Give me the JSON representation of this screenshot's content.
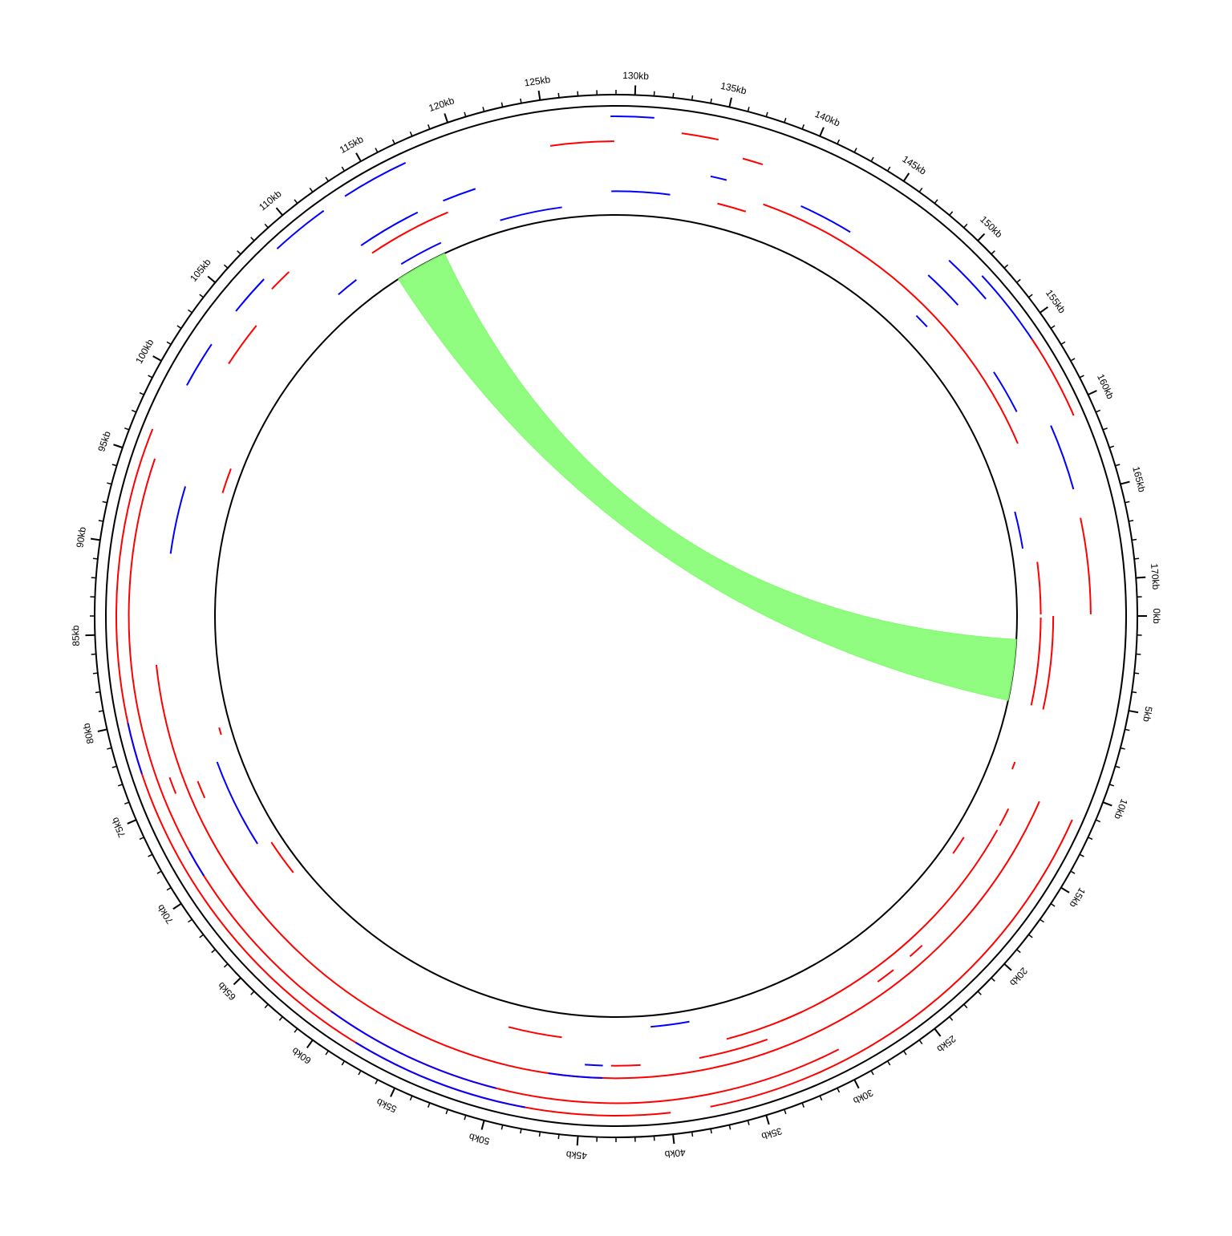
{
  "chart_data": {
    "type": "circos",
    "xlim": [
      0,
      172
    ],
    "xticks": [
      {
        "value": 0,
        "label": "0kb"
      },
      {
        "value": 5,
        "label": "5kb"
      },
      {
        "value": 10,
        "label": "10kb"
      },
      {
        "value": 15,
        "label": "15kb"
      },
      {
        "value": 20,
        "label": "20kb"
      },
      {
        "value": 25,
        "label": "25kb"
      },
      {
        "value": 30,
        "label": "30kb"
      },
      {
        "value": 35,
        "label": "35kb"
      },
      {
        "value": 40,
        "label": "40kb"
      },
      {
        "value": 45,
        "label": "45kb"
      },
      {
        "value": 50,
        "label": "50kb"
      },
      {
        "value": 55,
        "label": "55kb"
      },
      {
        "value": 60,
        "label": "60kb"
      },
      {
        "value": 65,
        "label": "65kb"
      },
      {
        "value": 70,
        "label": "70kb"
      },
      {
        "value": 75,
        "label": "75kb"
      },
      {
        "value": 80,
        "label": "80kb"
      },
      {
        "value": 85,
        "label": "85kb"
      },
      {
        "value": 90,
        "label": "90kb"
      },
      {
        "value": 95,
        "label": "95kb"
      },
      {
        "value": 100,
        "label": "100kb"
      },
      {
        "value": 105,
        "label": "105kb"
      },
      {
        "value": 110,
        "label": "110kb"
      },
      {
        "value": 115,
        "label": "115kb"
      },
      {
        "value": 120,
        "label": "120kb"
      },
      {
        "value": 125,
        "label": "125kb"
      },
      {
        "value": 130,
        "label": "130kb"
      },
      {
        "value": 135,
        "label": "135kb"
      },
      {
        "value": 140,
        "label": "140kb"
      },
      {
        "value": 145,
        "label": "145kb"
      },
      {
        "value": 150,
        "label": "150kb"
      },
      {
        "value": 155,
        "label": "155kb"
      },
      {
        "value": 160,
        "label": "160kb"
      },
      {
        "value": 165,
        "label": "165kb"
      },
      {
        "value": 170,
        "label": "170kb"
      }
    ],
    "minor_ticks": [
      1,
      2,
      3,
      4,
      6,
      7,
      8,
      9,
      11,
      12,
      13,
      14,
      16,
      17,
      18,
      19,
      21,
      22,
      23,
      24,
      26,
      27,
      28,
      29,
      31,
      32,
      33,
      34,
      36,
      37,
      38,
      39,
      41,
      42,
      43,
      44,
      46,
      47,
      48,
      49,
      51,
      52,
      53,
      54,
      56,
      57,
      58,
      59,
      61,
      62,
      63,
      64,
      66,
      67,
      68,
      69,
      71,
      72,
      73,
      74,
      76,
      77,
      78,
      79,
      81,
      82,
      83,
      84,
      86,
      87,
      88,
      89,
      91,
      92,
      93,
      94,
      96,
      97,
      98,
      99,
      101,
      102,
      103,
      104,
      106,
      107,
      108,
      109,
      111,
      112,
      113,
      114,
      116,
      117,
      118,
      119,
      121,
      122,
      123,
      124,
      126,
      127,
      128,
      129,
      131,
      132,
      133,
      134,
      136,
      137,
      138,
      139,
      141,
      142,
      143,
      144,
      146,
      147,
      148,
      149,
      151,
      152,
      153,
      154,
      156,
      157,
      158,
      159,
      161,
      162,
      163,
      164,
      166,
      167,
      168,
      169,
      171
    ],
    "tracks": [
      {
        "features": [
          {
            "start": 128.7,
            "end": 131.1,
            "color": "#0000ff"
          },
          {
            "start": 113.3,
            "end": 117.1,
            "color": "#0000ff"
          },
          {
            "start": 108.6,
            "end": 111.9,
            "color": "#0000ff"
          },
          {
            "start": 151.5,
            "end": 156.5,
            "color": "#0000ff"
          },
          {
            "start": 155.9,
            "end": 160.7,
            "color": "#ff0000"
          },
          {
            "start": 11.5,
            "end": 37.8,
            "color": "#ff0000"
          },
          {
            "start": 40,
            "end": 96.5,
            "color": "#ff0000"
          },
          {
            "start": 77.2,
            "end": 80.1,
            "color": "#0000ff"
          },
          {
            "start": 48,
            "end": 58,
            "color": "#0000ff"
          }
        ]
      },
      {
        "features": [
          {
            "start": 132.7,
            "end": 134.8,
            "color": "#ff0000"
          },
          {
            "start": 104.5,
            "end": 106.9,
            "color": "#0000ff"
          },
          {
            "start": 99.5,
            "end": 102.2,
            "color": "#0000ff"
          },
          {
            "start": 149.6,
            "end": 152.6,
            "color": "#0000ff"
          },
          {
            "start": 30,
            "end": 95,
            "color": "#ff0000"
          },
          {
            "start": 49.8,
            "end": 60.1,
            "color": "#0000ff"
          },
          {
            "start": 70.6,
            "end": 72.2,
            "color": "#0000ff"
          }
        ]
      },
      {
        "features": [
          {
            "start": 125.2,
            "end": 128.9,
            "color": "#ff0000"
          },
          {
            "start": 136.4,
            "end": 137.6,
            "color": "#ff0000"
          },
          {
            "start": 160.7,
            "end": 164.6,
            "color": "#0000ff"
          },
          {
            "start": 166.3,
            "end": 171.9,
            "color": "#ff0000"
          },
          {
            "start": 106.8,
            "end": 108.2,
            "color": "#ff0000"
          },
          {
            "start": 75.5,
            "end": 76.5,
            "color": "#ff0000"
          }
        ]
      },
      {
        "features": [
          {
            "start": 149.3,
            "end": 151.8,
            "color": "#0000ff"
          },
          {
            "start": 101.8,
            "end": 104.6,
            "color": "#ff0000"
          },
          {
            "start": 11.3,
            "end": 83.1,
            "color": "#ff0000"
          },
          {
            "start": 43.8,
            "end": 47,
            "color": "#0000ff"
          },
          {
            "start": 69,
            "end": 70,
            "color": "#ff0000"
          }
        ]
      },
      {
        "features": [
          {
            "start": 134.8,
            "end": 135.8,
            "color": "#0000ff"
          },
          {
            "start": 140.6,
            "end": 144,
            "color": "#0000ff"
          },
          {
            "start": 156.3,
            "end": 159.1,
            "color": "#0000ff"
          },
          {
            "start": 118.2,
            "end": 120.3,
            "color": "#0000ff"
          },
          {
            "start": 112.5,
            "end": 116.5,
            "color": "#0000ff"
          },
          {
            "start": 89.8,
            "end": 94,
            "color": "#0000ff"
          },
          {
            "start": 74.6,
            "end": 75.7,
            "color": "#ff0000"
          },
          {
            "start": 43.8,
            "end": 44.9,
            "color": "#0000ff"
          },
          {
            "start": 41.5,
            "end": 43.3,
            "color": "#ff0000"
          },
          {
            "start": 33.6,
            "end": 37.9,
            "color": "#ff0000"
          },
          {
            "start": 24.8,
            "end": 26,
            "color": "#ff0000"
          },
          {
            "start": 22.5,
            "end": 23.5,
            "color": "#ff0000"
          }
        ]
      },
      {
        "features": [
          {
            "start": 138.4,
            "end": 160.9,
            "color": "#ff0000"
          },
          {
            "start": 112.8,
            "end": 118.2,
            "color": "#ff0000"
          },
          {
            "start": 0,
            "end": 5.9,
            "color": "#ff0000"
          },
          {
            "start": 12.5,
            "end": 13.7,
            "color": "#ff0000"
          },
          {
            "start": 14,
            "end": 36,
            "color": "#ff0000"
          },
          {
            "start": 31,
            "end": 32.4,
            "color": "#ff0000"
          }
        ]
      },
      {
        "features": [
          {
            "start": 128.7,
            "end": 132.5,
            "color": "#0000ff"
          },
          {
            "start": 135.6,
            "end": 137.5,
            "color": "#ff0000"
          },
          {
            "start": 150.5,
            "end": 151.5,
            "color": "#0000ff"
          },
          {
            "start": 168.5,
            "end": 171.9,
            "color": "#ff0000"
          },
          {
            "start": 0.1,
            "end": 5.8,
            "color": "#ff0000"
          },
          {
            "start": 9.6,
            "end": 10.1,
            "color": "#ff0000"
          },
          {
            "start": 109.5,
            "end": 111,
            "color": "#0000ff"
          },
          {
            "start": 70.5,
            "end": 76.4,
            "color": "#0000ff"
          },
          {
            "start": 46.5,
            "end": 50,
            "color": "#ff0000"
          }
        ]
      },
      {
        "features": [
          {
            "start": 121.2,
            "end": 125.4,
            "color": "#0000ff"
          },
          {
            "start": 114,
            "end": 117,
            "color": "#0000ff"
          },
          {
            "start": 165,
            "end": 167.5,
            "color": "#0000ff"
          },
          {
            "start": 94.3,
            "end": 96,
            "color": "#ff0000"
          },
          {
            "start": 67.6,
            "end": 70.1,
            "color": "#ff0000"
          },
          {
            "start": 78,
            "end": 78.5,
            "color": "#ff0000"
          },
          {
            "start": 38.1,
            "end": 40.7,
            "color": "#0000ff"
          },
          {
            "start": 15.5,
            "end": 16.8,
            "color": "#ff0000"
          }
        ]
      }
    ],
    "links": [
      {
        "source": [
          113.3,
          116.9
        ],
        "target": [
          1.6,
          5.8
        ],
        "color": "#7dfc6a"
      }
    ]
  }
}
